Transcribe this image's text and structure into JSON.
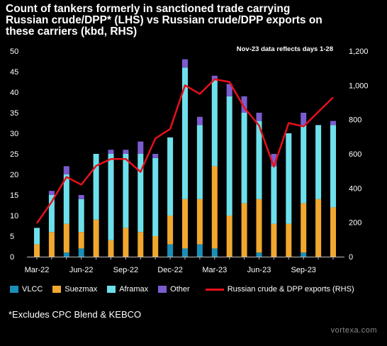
{
  "title": "Count of tankers formerly in sanctioned trade carrying\nRussian crude/DPP* (LHS) vs Russian crude/DPP exports on\nthese carriers (kbd, RHS)",
  "annotation": "Nov-23 data reflects days 1-28",
  "footnote": "*Excludes CPC Blend & KEBCO",
  "brand": "vortexa.com",
  "colors": {
    "VLCC": "#1a8fb8",
    "Suezmax": "#f0a830",
    "Aframax": "#6ee0ec",
    "Other": "#7b5ccf",
    "line": "#e8101a"
  },
  "chart_data": {
    "type": "bar",
    "stacked": true,
    "left_axis": {
      "min": 0,
      "max": 50,
      "ticks": [
        "0",
        "5",
        "10",
        "15",
        "20",
        "25",
        "30",
        "35",
        "40",
        "45",
        "50"
      ]
    },
    "right_axis": {
      "min": 0,
      "max": 1200,
      "ticks": [
        "0",
        "200",
        "400",
        "600",
        "800",
        "1,000",
        "1,200"
      ]
    },
    "x_tick_labels": [
      "Mar-22",
      "Jun-22",
      "Sep-22",
      "Dec-22",
      "Mar-23",
      "Jun-23",
      "Sep-23"
    ],
    "categories": [
      "Mar-22",
      "Apr-22",
      "May-22",
      "Jun-22",
      "Jul-22",
      "Aug-22",
      "Sep-22",
      "Oct-22",
      "Nov-22",
      "Dec-22",
      "Jan-23",
      "Feb-23",
      "Mar-23",
      "Apr-23",
      "May-23",
      "Jun-23",
      "Jul-23",
      "Aug-23",
      "Sep-23",
      "Oct-23",
      "Nov-23"
    ],
    "series": [
      {
        "name": "VLCC",
        "values": [
          0,
          0,
          1,
          2,
          0,
          0,
          0,
          0,
          0,
          3,
          2,
          3,
          2,
          0,
          0,
          1,
          0,
          0,
          1,
          0,
          0
        ]
      },
      {
        "name": "Suezmax",
        "values": [
          3,
          6,
          7,
          4,
          9,
          4,
          7,
          6,
          5,
          7,
          12,
          11,
          20,
          10,
          13,
          13,
          8,
          8,
          12,
          14,
          12
        ]
      },
      {
        "name": "Aframax",
        "values": [
          4,
          9,
          12,
          8,
          16,
          21,
          18,
          19,
          19,
          19,
          32,
          18,
          21,
          29,
          22,
          19,
          14,
          22,
          19,
          18,
          20
        ]
      },
      {
        "name": "Other",
        "values": [
          0,
          1,
          2,
          1,
          0,
          1,
          1,
          3,
          1,
          0,
          2,
          2,
          1,
          3,
          4,
          2,
          3,
          0,
          3,
          0,
          1
        ]
      }
    ],
    "line_series": {
      "name": "Russian crude & DPP exports (RHS)",
      "values": [
        195,
        320,
        465,
        420,
        530,
        570,
        570,
        495,
        690,
        745,
        1000,
        950,
        1035,
        1020,
        870,
        765,
        525,
        780,
        760,
        845,
        930
      ]
    },
    "legend": {
      "position": "bottom"
    },
    "grid": false
  }
}
